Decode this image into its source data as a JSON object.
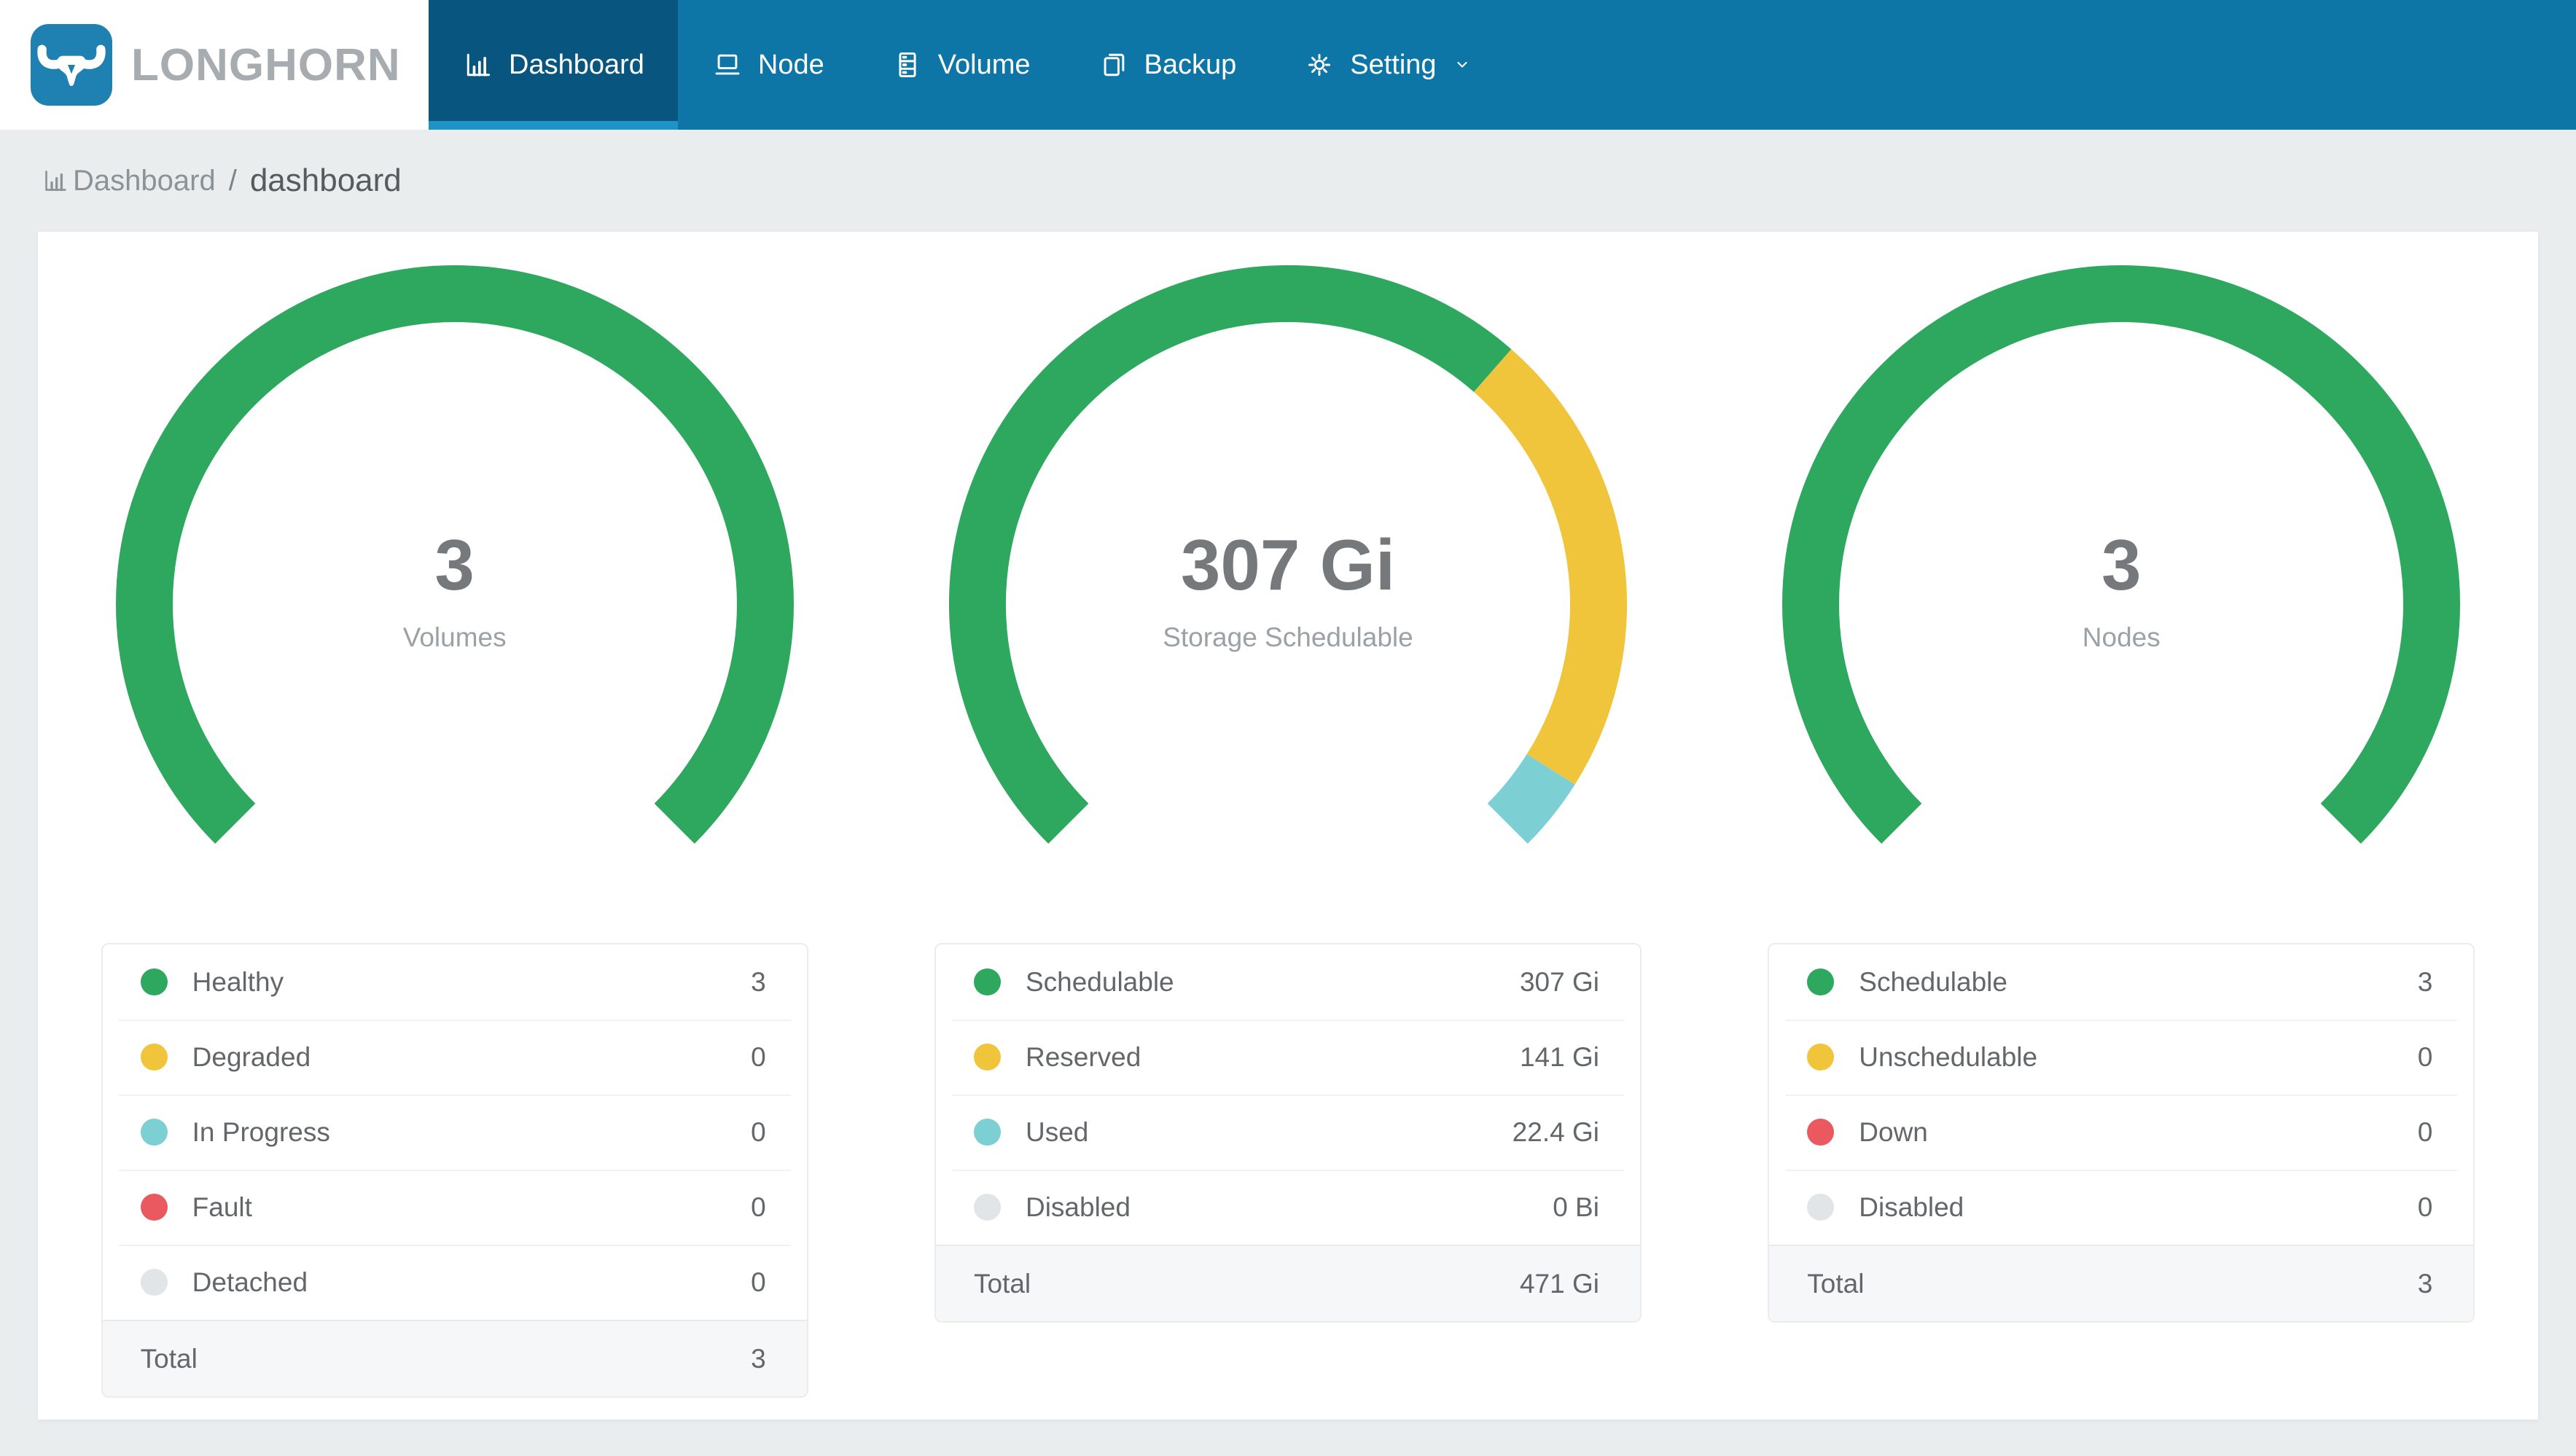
{
  "brand": {
    "name": "LONGHORN"
  },
  "nav": {
    "items": [
      {
        "label": "Dashboard",
        "icon": "bar-chart-icon",
        "active": true
      },
      {
        "label": "Node",
        "icon": "laptop-icon",
        "active": false
      },
      {
        "label": "Volume",
        "icon": "server-icon",
        "active": false
      },
      {
        "label": "Backup",
        "icon": "document-icon",
        "active": false
      },
      {
        "label": "Setting",
        "icon": "gear-icon",
        "active": false,
        "has_dropdown": true
      }
    ]
  },
  "breadcrumb": {
    "icon": "bar-chart-icon",
    "root": "Dashboard",
    "separator": "/",
    "current": "dashboard"
  },
  "colors": {
    "navbar": "#0e76a6",
    "navbar_active": "#085680",
    "navbar_active_underline": "#1e93c4",
    "logo_blue": "#1f80b2",
    "brand_text": "#a7acb1",
    "page_background": "#e9edee",
    "card_background": "#ffffff",
    "green": "#2da85e",
    "yellow": "#f0c53c",
    "teal": "#7ccfd3",
    "red": "#e9595f",
    "gray": "#e2e5e8"
  },
  "chart_data": [
    {
      "type": "gauge",
      "arc_degrees": 270,
      "start_angle_deg": 135,
      "center_value": "3",
      "center_label": "Volumes",
      "segments": [
        {
          "label": "Healthy",
          "value": 3,
          "display": "3",
          "color": "#2da85e"
        },
        {
          "label": "Degraded",
          "value": 0,
          "display": "0",
          "color": "#f0c53c"
        },
        {
          "label": "In Progress",
          "value": 0,
          "display": "0",
          "color": "#7ccfd3"
        },
        {
          "label": "Fault",
          "value": 0,
          "display": "0",
          "color": "#e9595f"
        },
        {
          "label": "Detached",
          "value": 0,
          "display": "0",
          "color": "#e2e5e8"
        }
      ],
      "total": {
        "label": "Total",
        "value": 3,
        "display": "3"
      }
    },
    {
      "type": "gauge",
      "arc_degrees": 270,
      "start_angle_deg": 135,
      "center_value": "307 Gi",
      "center_label": "Storage Schedulable",
      "segments": [
        {
          "label": "Schedulable",
          "value": 307,
          "display": "307 Gi",
          "color": "#2da85e"
        },
        {
          "label": "Reserved",
          "value": 141,
          "display": "141 Gi",
          "color": "#f0c53c"
        },
        {
          "label": "Used",
          "value": 22.4,
          "display": "22.4 Gi",
          "color": "#7ccfd3"
        },
        {
          "label": "Disabled",
          "value": 0,
          "display": "0 Bi",
          "color": "#e2e5e8"
        }
      ],
      "total": {
        "label": "Total",
        "value": 471,
        "display": "471 Gi"
      }
    },
    {
      "type": "gauge",
      "arc_degrees": 270,
      "start_angle_deg": 135,
      "center_value": "3",
      "center_label": "Nodes",
      "segments": [
        {
          "label": "Schedulable",
          "value": 3,
          "display": "3",
          "color": "#2da85e"
        },
        {
          "label": "Unschedulable",
          "value": 0,
          "display": "0",
          "color": "#f0c53c"
        },
        {
          "label": "Down",
          "value": 0,
          "display": "0",
          "color": "#e9595f"
        },
        {
          "label": "Disabled",
          "value": 0,
          "display": "0",
          "color": "#e2e5e8"
        }
      ],
      "total": {
        "label": "Total",
        "value": 3,
        "display": "3"
      }
    }
  ]
}
